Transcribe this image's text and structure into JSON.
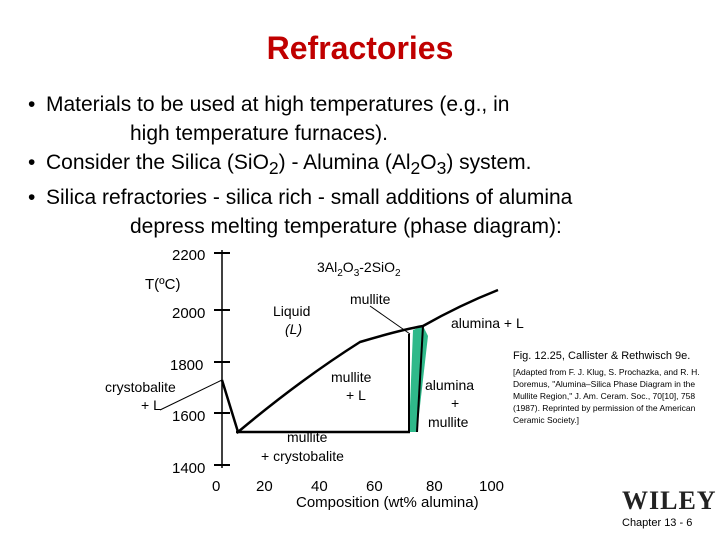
{
  "slide": {
    "title": "Refractories",
    "bullets": [
      {
        "line1": "Materials to be used at high temperatures (e.g., in",
        "line2": "high temperature furnaces)."
      },
      {
        "line1_pre": "Consider the Silica (SiO",
        "sub1": "2",
        "line1_mid": ") - Alumina (Al",
        "sub2": "2",
        "line1_mid2": "O",
        "sub3": "3",
        "line1_post": ") system."
      },
      {
        "line1": "Silica refractories - silica rich - small additions of alumina",
        "line2": "depress melting temperature (phase diagram):"
      }
    ]
  },
  "diagram": {
    "y_axis_label": "T(ºC)",
    "y_ticks": [
      "2200",
      "2000",
      "1800",
      "1600",
      "1400"
    ],
    "x_ticks": [
      "0",
      "20",
      "40",
      "60",
      "80",
      "100"
    ],
    "x_axis_label": "Composition (wt% alumina)",
    "compound_label_parts": [
      "3Al",
      "2",
      "O",
      "3",
      "-2SiO",
      "2"
    ],
    "mullite_label": "mullite",
    "regions": {
      "liquid": "Liquid",
      "liquid_sym": "(L)",
      "alumina_L": "alumina + L",
      "crystobalite": "crystobalite",
      "crystobalite_L": "+ L",
      "mullite_L_1": "mullite",
      "mullite_L_2": "+ L",
      "alumina_mullite_1": "alumina",
      "alumina_mullite_2": "+",
      "alumina_mullite_3": "mullite",
      "mullite_crysto_1": "mullite",
      "mullite_crysto_2": "+ crystobalite"
    },
    "colors": {
      "mullite_field": "#2fb98a",
      "curve": "#000000"
    }
  },
  "caption": {
    "fig": "Fig. 12.25, Callister & Rethwisch 9e.",
    "ref": "[Adapted from F. J. Klug, S. Prochazka, and R. H. Doremus, \"Alumina–Silica Phase Diagram in the Mullite Region,\" J. Am. Ceram. Soc., 70[10], 758 (1987). Reprinted by permission of the American Ceramic Society.]"
  },
  "footer": {
    "logo": "WILEY",
    "chapter": "Chapter 13 - 6"
  }
}
